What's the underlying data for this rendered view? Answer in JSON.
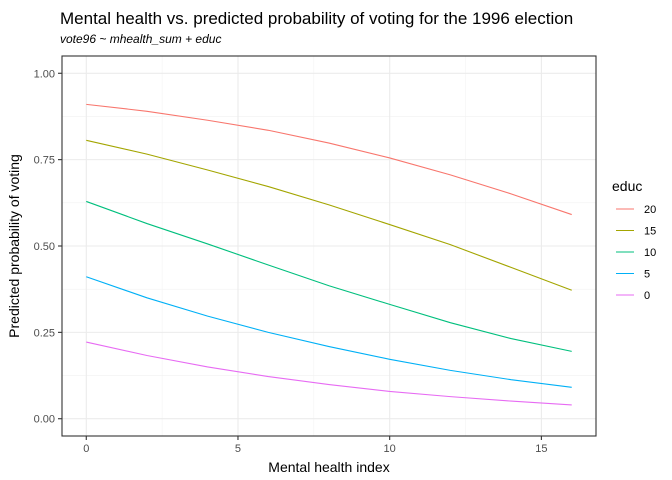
{
  "chart_data": {
    "type": "line",
    "title": "Mental health vs. predicted probability of voting for the 1996 election",
    "subtitle": "vote96 ~ mhealth_sum + educ",
    "xlabel": "Mental health index",
    "ylabel": "Predicted probability of voting",
    "xlim": [
      -0.8,
      16.8
    ],
    "ylim": [
      -0.05,
      1.05
    ],
    "x_ticks": [
      0,
      5,
      10,
      15
    ],
    "x_tick_labels": [
      "0",
      "5",
      "10",
      "15"
    ],
    "y_ticks": [
      0,
      0.25,
      0.5,
      0.75,
      1.0
    ],
    "y_tick_labels": [
      "0.00",
      "0.25",
      "0.50",
      "0.75",
      "1.00"
    ],
    "grid": true,
    "legend": {
      "title": "educ",
      "placement": "right"
    },
    "x": [
      0,
      2,
      4,
      6,
      8,
      10,
      12,
      14,
      16
    ],
    "series": [
      {
        "name": "20",
        "color": "#F8766D",
        "values": [
          0.91,
          0.89,
          0.864,
          0.835,
          0.798,
          0.755,
          0.706,
          0.651,
          0.591
        ]
      },
      {
        "name": "15",
        "color": "#A3A500",
        "values": [
          0.806,
          0.766,
          0.72,
          0.672,
          0.619,
          0.562,
          0.504,
          0.438,
          0.372
        ]
      },
      {
        "name": "10",
        "color": "#00BF7D",
        "values": [
          0.629,
          0.565,
          0.506,
          0.445,
          0.385,
          0.331,
          0.278,
          0.232,
          0.195
        ]
      },
      {
        "name": "5",
        "color": "#00B0F6",
        "values": [
          0.411,
          0.35,
          0.297,
          0.25,
          0.209,
          0.172,
          0.14,
          0.113,
          0.091
        ]
      },
      {
        "name": "0",
        "color": "#E76BF3",
        "values": [
          0.222,
          0.183,
          0.15,
          0.122,
          0.099,
          0.079,
          0.064,
          0.051,
          0.04
        ]
      }
    ]
  }
}
